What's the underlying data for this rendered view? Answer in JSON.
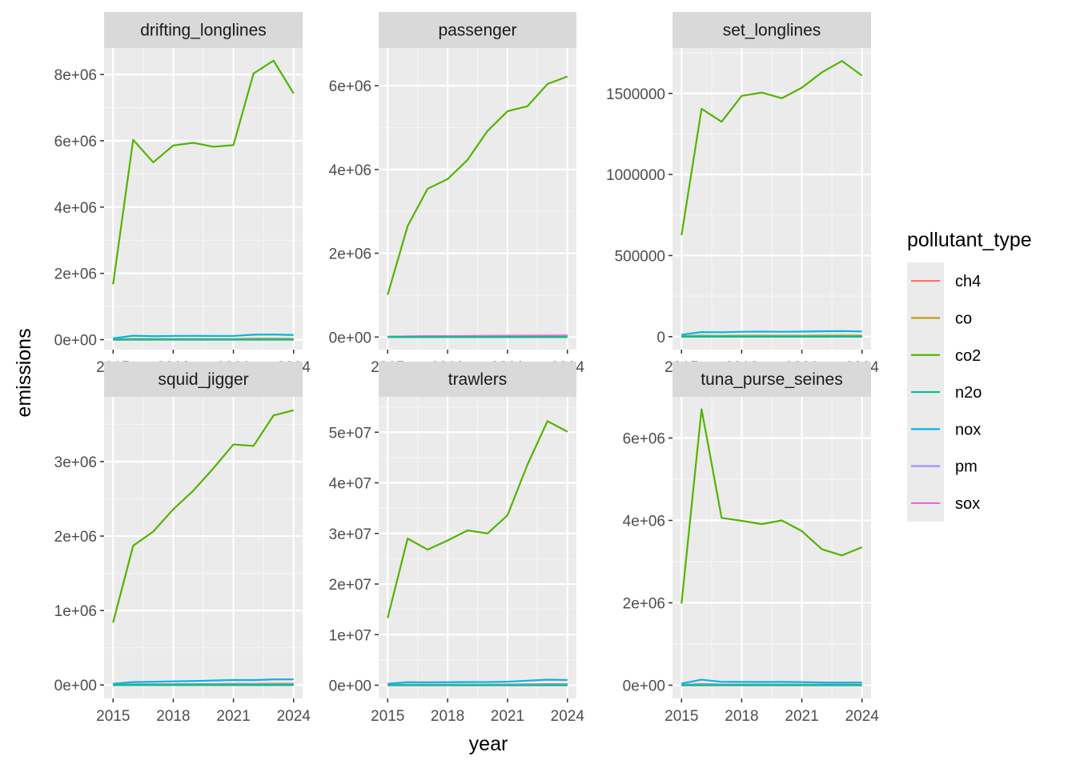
{
  "chart_data": {
    "type": "line",
    "xlabel": "year",
    "ylabel": "emissions",
    "x": [
      2015,
      2016,
      2017,
      2018,
      2019,
      2020,
      2021,
      2022,
      2023,
      2024
    ],
    "x_ticks": [
      2015,
      2018,
      2021,
      2024
    ],
    "x_tick_labels": [
      "2015",
      "2018",
      "2021",
      "2024"
    ],
    "grid": true,
    "legend": {
      "title": "pollutant_type",
      "position": "right",
      "entries": [
        {
          "name": "ch4",
          "color": "#F8766D"
        },
        {
          "name": "co",
          "color": "#C49A00"
        },
        {
          "name": "co2",
          "color": "#53B400"
        },
        {
          "name": "n2o",
          "color": "#00C094"
        },
        {
          "name": "nox",
          "color": "#00B6EB"
        },
        {
          "name": "pm",
          "color": "#A58AFF"
        },
        {
          "name": "sox",
          "color": "#FB61D7"
        }
      ]
    },
    "facets": [
      {
        "title": "drifting_longlines",
        "ylim": [
          -300000,
          8800000
        ],
        "y_ticks": [
          0,
          2000000,
          4000000,
          6000000,
          8000000
        ],
        "y_tick_labels": [
          "0e+00",
          "2e+06",
          "4e+06",
          "6e+06",
          "8e+06"
        ],
        "series": [
          {
            "name": "co2",
            "values": [
              1670000,
              6030000,
              5350000,
              5860000,
              5940000,
              5820000,
              5870000,
              8030000,
              8420000,
              7430000
            ]
          },
          {
            "name": "nox",
            "values": [
              40000,
              120000,
              105000,
              112000,
              115000,
              112000,
              112000,
              150000,
              155000,
              140000
            ]
          },
          {
            "name": "co",
            "values": [
              8000,
              22000,
              20000,
              21000,
              21000,
              20000,
              20000,
              28000,
              29000,
              26000
            ]
          },
          {
            "name": "sox",
            "values": [
              1500,
              4500,
              4000,
              4300,
              4400,
              4300,
              4300,
              5900,
              6200,
              5400
            ]
          },
          {
            "name": "pm",
            "values": [
              1000,
              3000,
              2700,
              2900,
              3000,
              2900,
              2900,
              4000,
              4200,
              3700
            ]
          },
          {
            "name": "ch4",
            "values": [
              30,
              100,
              90,
              100,
              100,
              100,
              100,
              130,
              140,
              120
            ]
          },
          {
            "name": "n2o",
            "values": [
              80,
              300,
              270,
              290,
              300,
              290,
              290,
              400,
              420,
              370
            ]
          }
        ]
      },
      {
        "title": "passenger",
        "ylim": [
          -300000,
          6900000
        ],
        "y_ticks": [
          0,
          2000000,
          4000000,
          6000000
        ],
        "y_tick_labels": [
          "0e+00",
          "2e+06",
          "4e+06",
          "6e+06"
        ],
        "series": [
          {
            "name": "co2",
            "values": [
              1010000,
              2650000,
              3540000,
              3770000,
              4230000,
              4920000,
              5390000,
              5510000,
              6040000,
              6220000
            ]
          },
          {
            "name": "nox",
            "values": [
              6000,
              14000,
              19000,
              20000,
              22000,
              26000,
              28000,
              29000,
              31000,
              33000
            ]
          },
          {
            "name": "sox",
            "values": [
              7000,
              17000,
              22000,
              24000,
              26000,
              31000,
              33000,
              34000,
              37000,
              39000
            ]
          },
          {
            "name": "co",
            "values": [
              1500,
              3500,
              4700,
              5000,
              5600,
              6500,
              7100,
              7300,
              8000,
              8300
            ]
          },
          {
            "name": "pm",
            "values": [
              1500,
              3600,
              4800,
              5100,
              5700,
              6700,
              7300,
              7500,
              8200,
              8500
            ]
          },
          {
            "name": "ch4",
            "values": [
              20,
              50,
              70,
              75,
              85,
              100,
              110,
              110,
              120,
              125
            ]
          },
          {
            "name": "n2o",
            "values": [
              50,
              130,
              170,
              180,
              200,
              240,
              260,
              270,
              290,
              300
            ]
          }
        ]
      },
      {
        "title": "set_longlines",
        "ylim": [
          -80000,
          1780000
        ],
        "y_ticks": [
          0,
          500000,
          1000000,
          1500000
        ],
        "y_tick_labels": [
          "0",
          "500000",
          "1000000",
          "1500000"
        ],
        "series": [
          {
            "name": "co2",
            "values": [
              625000,
              1405000,
              1325000,
              1485000,
              1505000,
              1470000,
              1535000,
              1630000,
              1700000,
              1610000
            ]
          },
          {
            "name": "nox",
            "values": [
              12000,
              28000,
              27000,
              30000,
              31000,
              30000,
              31000,
              33000,
              34000,
              32000
            ]
          },
          {
            "name": "co",
            "values": [
              2500,
              5600,
              5300,
              5900,
              6000,
              5900,
              6100,
              6500,
              6800,
              6400
            ]
          },
          {
            "name": "sox",
            "values": [
              600,
              1300,
              1200,
              1400,
              1400,
              1400,
              1400,
              1500,
              1600,
              1500
            ]
          },
          {
            "name": "pm",
            "values": [
              400,
              900,
              850,
              950,
              960,
              940,
              980,
              1040,
              1090,
              1030
            ]
          },
          {
            "name": "ch4",
            "values": [
              10,
              25,
              24,
              26,
              27,
              26,
              27,
              29,
              30,
              29
            ]
          },
          {
            "name": "n2o",
            "values": [
              30,
              70,
              66,
              74,
              75,
              73,
              77,
              81,
              85,
              80
            ]
          }
        ]
      },
      {
        "title": "squid_jigger",
        "ylim": [
          -180000,
          3870000
        ],
        "y_ticks": [
          0,
          1000000,
          2000000,
          3000000
        ],
        "y_tick_labels": [
          "0e+00",
          "1e+06",
          "2e+06",
          "3e+06"
        ],
        "series": [
          {
            "name": "co2",
            "values": [
              840000,
              1870000,
              2060000,
              2360000,
              2610000,
              2910000,
              3230000,
              3210000,
              3620000,
              3690000
            ]
          },
          {
            "name": "nox",
            "values": [
              18000,
              39000,
              43000,
              49000,
              54000,
              60000,
              67000,
              66000,
              75000,
              76000
            ]
          },
          {
            "name": "sox",
            "values": [
              4000,
              9000,
              10000,
              11500,
              12700,
              14200,
              15700,
              15600,
              17600,
              18000
            ]
          },
          {
            "name": "co",
            "values": [
              3400,
              7500,
              8200,
              9400,
              10400,
              11600,
              12900,
              12800,
              14500,
              14800
            ]
          },
          {
            "name": "pm",
            "values": [
              2000,
              4500,
              5000,
              5700,
              6300,
              7000,
              7800,
              7700,
              8700,
              8900
            ]
          },
          {
            "name": "ch4",
            "values": [
              15,
              35,
              38,
              44,
              48,
              54,
              60,
              59,
              67,
              68
            ]
          },
          {
            "name": "n2o",
            "values": [
              40,
              90,
              100,
              115,
              125,
              140,
              155,
              155,
              175,
              178
            ]
          }
        ]
      },
      {
        "title": "trawlers",
        "ylim": [
          -2600000,
          57000000
        ],
        "y_ticks": [
          0,
          10000000,
          20000000,
          30000000,
          40000000,
          50000000
        ],
        "y_tick_labels": [
          "0e+00",
          "1e+07",
          "2e+07",
          "3e+07",
          "4e+07",
          "5e+07"
        ],
        "series": [
          {
            "name": "co2",
            "values": [
              13300000,
              29000000,
              26800000,
              28600000,
              30600000,
              30000000,
              33600000,
              43600000,
              52200000,
              50100000
            ]
          },
          {
            "name": "nox",
            "values": [
              280000,
              600000,
              560000,
              600000,
              640000,
              630000,
              700000,
              910000,
              1090000,
              1040000
            ]
          },
          {
            "name": "co",
            "values": [
              60000,
              130000,
              120000,
              130000,
              140000,
              135000,
              150000,
              195000,
              235000,
              225000
            ]
          },
          {
            "name": "sox",
            "values": [
              40000,
              90000,
              85000,
              90000,
              95000,
              93000,
              104000,
              135000,
              162000,
              155000
            ]
          },
          {
            "name": "pm",
            "values": [
              25000,
              55000,
              50000,
              54000,
              58000,
              57000,
              63000,
              82000,
              98000,
              94000
            ]
          },
          {
            "name": "ch4",
            "values": [
              250,
              560,
              520,
              550,
              590,
              580,
              650,
              840,
              1000,
              960
            ]
          },
          {
            "name": "n2o",
            "values": [
              600,
              1400,
              1300,
              1380,
              1480,
              1450,
              1620,
              2100,
              2500,
              2400
            ]
          }
        ]
      },
      {
        "title": "tuna_purse_seines",
        "ylim": [
          -320000,
          7000000
        ],
        "y_ticks": [
          0,
          2000000,
          4000000,
          6000000
        ],
        "y_tick_labels": [
          "0e+00",
          "2e+06",
          "4e+06",
          "6e+06"
        ],
        "series": [
          {
            "name": "co2",
            "values": [
              1980000,
              6700000,
              4060000,
              3990000,
              3910000,
              4000000,
              3740000,
              3300000,
              3150000,
              3350000
            ]
          },
          {
            "name": "nox",
            "values": [
              40000,
              135000,
              82000,
              80000,
              78000,
              80000,
              75000,
              66000,
              63000,
              67000
            ]
          },
          {
            "name": "co",
            "values": [
              9000,
              30000,
              18000,
              18000,
              17500,
              18000,
              17000,
              15000,
              14000,
              15000
            ]
          },
          {
            "name": "sox",
            "values": [
              7000,
              24000,
              14500,
              14000,
              14000,
              14300,
              13400,
              11800,
              11300,
              12000
            ]
          },
          {
            "name": "pm",
            "values": [
              4000,
              13000,
              8000,
              7800,
              7700,
              7900,
              7400,
              6500,
              6200,
              6600
            ]
          },
          {
            "name": "ch4",
            "values": [
              40,
              130,
              80,
              78,
              77,
              79,
              74,
              65,
              62,
              66
            ]
          },
          {
            "name": "n2o",
            "values": [
              100,
              340,
              210,
              205,
              200,
              205,
              190,
              170,
              160,
              170
            ]
          }
        ]
      }
    ]
  }
}
